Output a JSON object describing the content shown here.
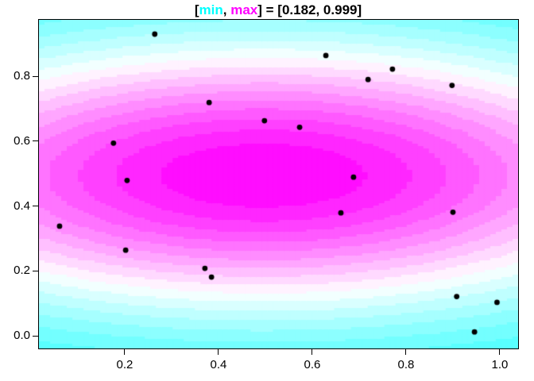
{
  "title": {
    "full_text": "[min, max] = [0.182, 0.999]",
    "segments": [
      {
        "text": "[",
        "color": "#000000"
      },
      {
        "text": "min",
        "color": "#00FFFF"
      },
      {
        "text": ", ",
        "color": "#000000"
      },
      {
        "text": "max",
        "color": "#FF00FF"
      },
      {
        "text": "] = [0.182, 0.999]",
        "color": "#000000"
      }
    ]
  },
  "chart_data": {
    "type": "heatmap",
    "subtype": "filled-contour-with-scatter",
    "title": "[min, max] = [0.182, 0.999]",
    "xlabel": "",
    "ylabel": "",
    "grid": "off",
    "legend": "none",
    "x_axis": {
      "range": [
        0.017,
        1.039
      ],
      "tick_values": [
        0.2,
        0.4,
        0.6,
        0.8,
        1.0
      ],
      "tick_labels": [
        "0.2",
        "0.4",
        "0.6",
        "0.8",
        "1.0"
      ]
    },
    "y_axis": {
      "range": [
        -0.039,
        0.974
      ],
      "tick_values": [
        0.0,
        0.2,
        0.4,
        0.6,
        0.8
      ],
      "tick_labels": [
        "0.0",
        "0.2",
        "0.4",
        "0.6",
        "0.8"
      ]
    },
    "surface": {
      "description": "Elliptical Gaussian bump rendered as quantized filled contour bands on a coarse raster grid",
      "function": "z = 0.999 * exp( -((x-0.495)^2/0.95 + (y-0.494)^2/0.19) )",
      "amplitude": 0.999,
      "center": [
        0.495,
        0.494
      ],
      "shape": [
        0.95,
        0.19
      ],
      "z_min": 0.182,
      "z_max": 0.999,
      "level_step": 0.05,
      "palette_anchors": [
        "#00FFFF",
        "#FFFFFF",
        "#FF00FF"
      ],
      "palette_value_range": [
        0,
        1
      ],
      "grid_resolution": [
        86,
        138
      ],
      "corner_band_color": "#5AFFFF",
      "center_band_color": "#FF0DFF"
    },
    "points": [
      [
        0.264,
        0.93
      ],
      [
        0.629,
        0.864
      ],
      [
        0.771,
        0.822
      ],
      [
        0.719,
        0.79
      ],
      [
        0.898,
        0.772
      ],
      [
        0.38,
        0.719
      ],
      [
        0.498,
        0.663
      ],
      [
        0.573,
        0.643
      ],
      [
        0.176,
        0.594
      ],
      [
        0.205,
        0.479
      ],
      [
        0.688,
        0.489
      ],
      [
        0.061,
        0.338
      ],
      [
        0.661,
        0.379
      ],
      [
        0.9,
        0.381
      ],
      [
        0.202,
        0.264
      ],
      [
        0.371,
        0.208
      ],
      [
        0.385,
        0.181
      ],
      [
        0.908,
        0.121
      ],
      [
        0.994,
        0.103
      ],
      [
        0.946,
        0.012
      ]
    ],
    "point_style": {
      "color": "#000000",
      "radius_px": 3.4,
      "marker": "filled-circle"
    }
  },
  "colors": {
    "background": "#FFFFFF",
    "plot_border": "#000000",
    "axis_text": "#000000",
    "title_min_color": "#00FFFF",
    "title_max_color": "#FF00FF"
  }
}
